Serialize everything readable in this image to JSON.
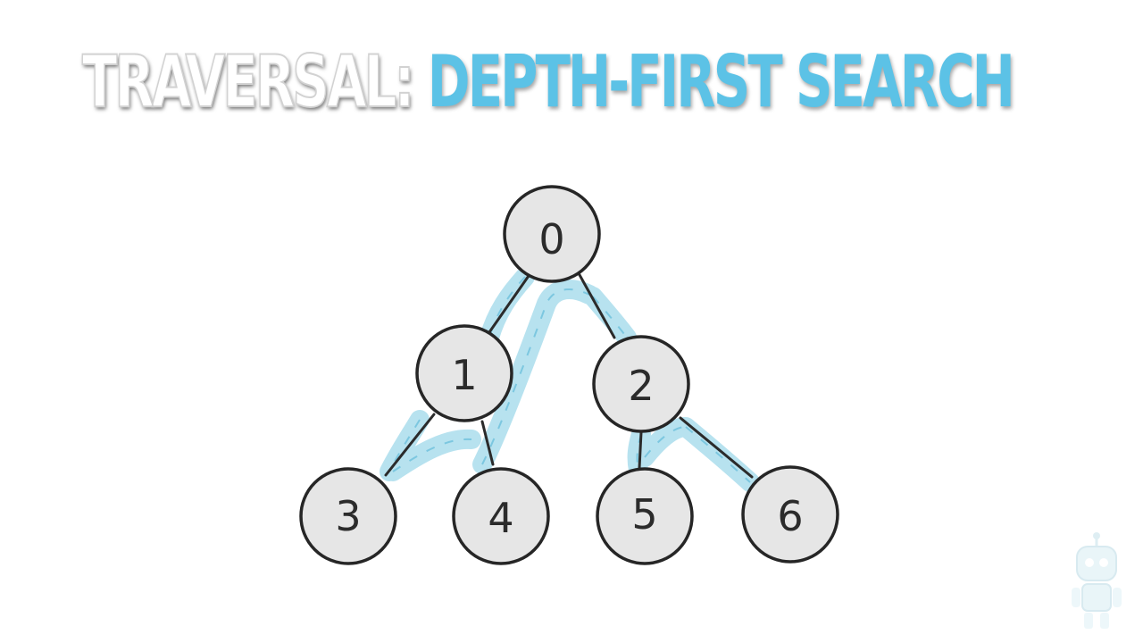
{
  "title": {
    "prefix": "TRAVERSAL:",
    "accent": "DEPTH-FIRST SEARCH"
  },
  "colors": {
    "accent": "#5cc2e6",
    "path_highlight": "#9fd8ea",
    "node_fill": "#e6e6e6",
    "node_stroke": "#262626"
  },
  "tree": {
    "nodes": [
      {
        "id": "0",
        "label": "0"
      },
      {
        "id": "1",
        "label": "1"
      },
      {
        "id": "2",
        "label": "2"
      },
      {
        "id": "3",
        "label": "3"
      },
      {
        "id": "4",
        "label": "4"
      },
      {
        "id": "5",
        "label": "5"
      },
      {
        "id": "6",
        "label": "6"
      }
    ],
    "edges": [
      {
        "from": "0",
        "to": "1"
      },
      {
        "from": "0",
        "to": "2"
      },
      {
        "from": "1",
        "to": "3"
      },
      {
        "from": "1",
        "to": "4"
      },
      {
        "from": "2",
        "to": "5"
      },
      {
        "from": "2",
        "to": "6"
      }
    ],
    "traversal_order": [
      "0",
      "1",
      "3",
      "4",
      "2",
      "5",
      "6"
    ]
  },
  "watermark": {
    "icon": "robot-icon"
  }
}
